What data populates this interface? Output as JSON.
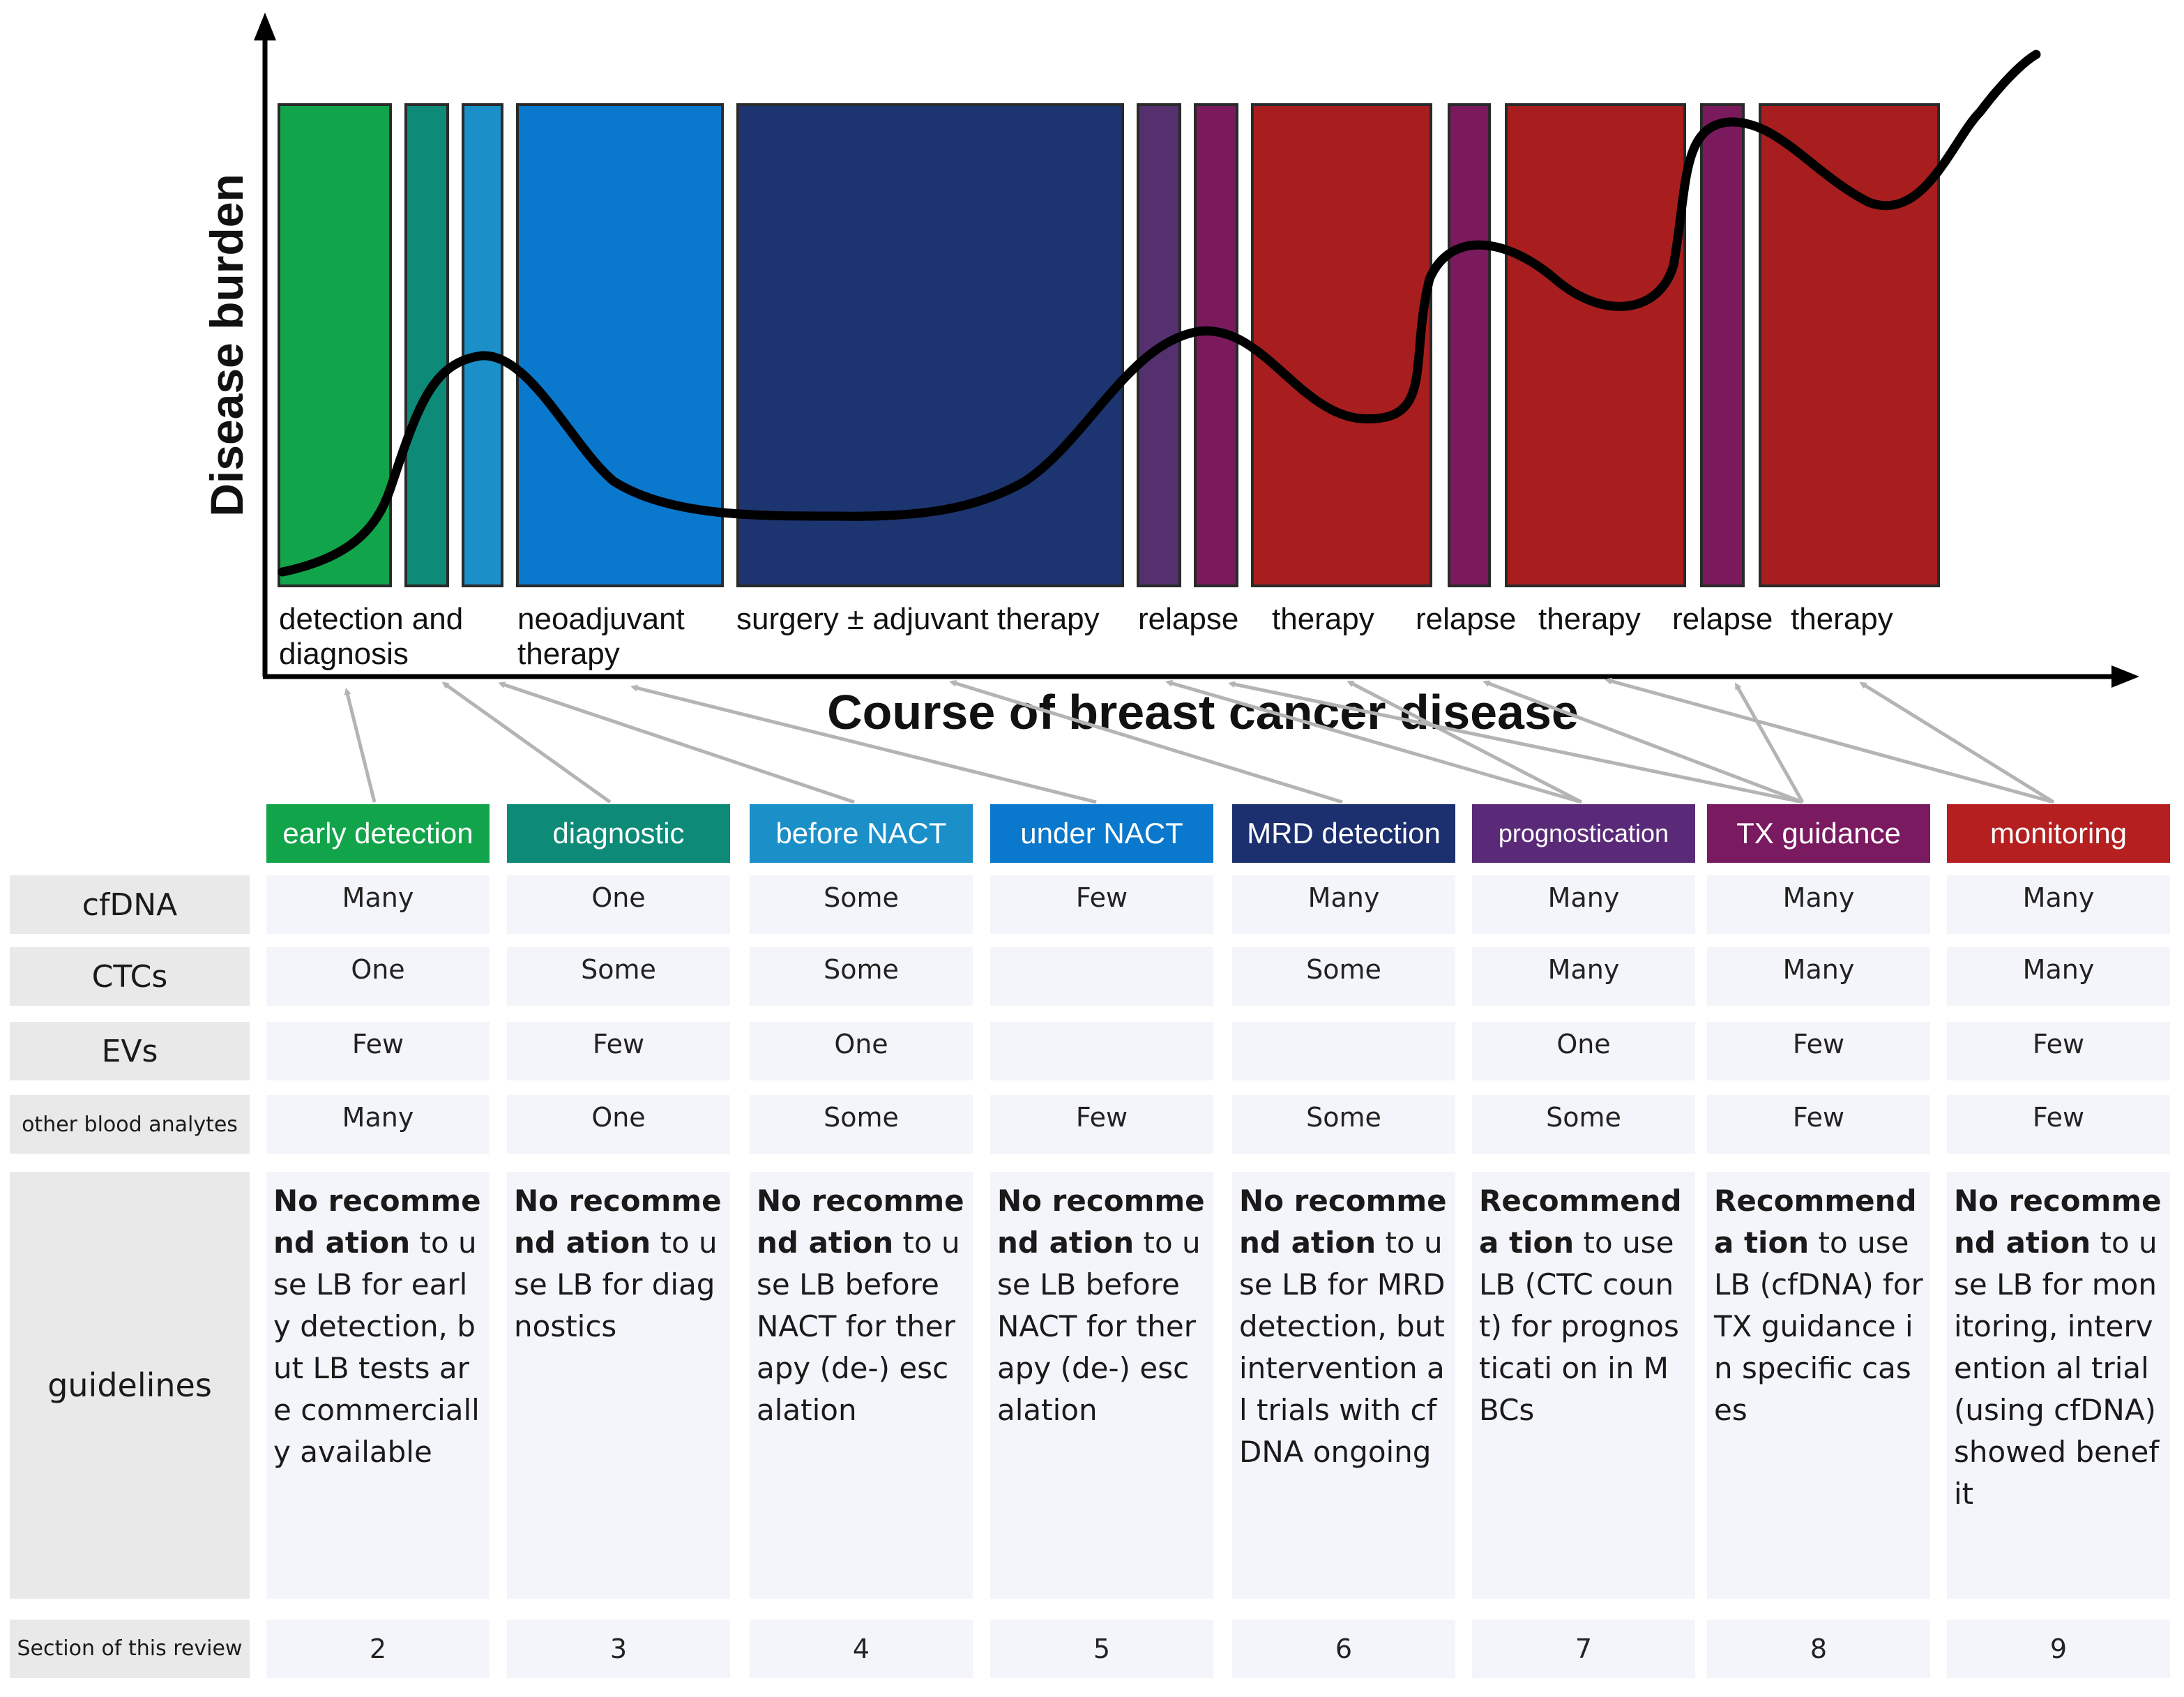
{
  "y_axis_label": "Disease burden",
  "x_axis_label": "Course of breast cancer disease",
  "phase_labels": [
    "detection and\ndiagnosis",
    "neoadjuvant\ntherapy",
    "surgery ± adjuvant therapy",
    "relapse",
    "therapy",
    "relapse",
    "therapy",
    "relapse",
    "therapy"
  ],
  "columns": [
    {
      "header": "early detection",
      "color": "#12a44a",
      "cfDNA": "Many",
      "CTCs": "One",
      "EVs": "Few",
      "other": "Many",
      "guide_bold": "No recommend ation",
      "guide_rest": " to use LB for early detection, but LB tests are commerciall y available",
      "section": "2"
    },
    {
      "header": "diagnostic",
      "color": "#0e8a78",
      "cfDNA": "One",
      "CTCs": "Some",
      "EVs": "Few",
      "other": "One",
      "guide_bold": "No recommend ation",
      "guide_rest": " to use LB for diagnostics",
      "section": "3"
    },
    {
      "header": "before NACT",
      "color": "#1a8fc8",
      "cfDNA": "Some",
      "CTCs": "Some",
      "EVs": "One",
      "other": "Some",
      "guide_bold": "No recommend ation",
      "guide_rest": " to use LB before NACT for therapy (de-) escalation",
      "section": "4"
    },
    {
      "header": "under NACT",
      "color": "#0a78cc",
      "cfDNA": "Few",
      "CTCs": "",
      "EVs": "",
      "other": "Few",
      "guide_bold": "No recommend ation",
      "guide_rest": " to use LB before NACT for therapy (de-) escalation",
      "section": "5"
    },
    {
      "header": "MRD detection",
      "color": "#1c2f6e",
      "cfDNA": "Many",
      "CTCs": "Some",
      "EVs": "",
      "other": "Some",
      "guide_bold": "No recommend ation",
      "guide_rest": " to use LB for MRD detection, but intervention al trials with cfDNA ongoing",
      "section": "6"
    },
    {
      "header": "prognostication",
      "color": "#5a2a78",
      "cfDNA": "Many",
      "CTCs": "Many",
      "EVs": "One",
      "other": "Some",
      "guide_bold": "Recommenda tion",
      "guide_rest": " to use LB (CTC count) for prognosticati on in MBCs",
      "section": "7"
    },
    {
      "header": "TX guidance",
      "color": "#7a1a60",
      "cfDNA": "Many",
      "CTCs": "Many",
      "EVs": "Few",
      "other": "Few",
      "guide_bold": "Recommenda tion",
      "guide_rest": " to use LB (cfDNA) for TX guidance in specific cases",
      "section": "8"
    },
    {
      "header": "monitoring",
      "color": "#b51f1f",
      "cfDNA": "Many",
      "CTCs": "Many",
      "EVs": "Few",
      "other": "Few",
      "guide_bold": "No recommend ation",
      "guide_rest": " to use LB for monitoring, intervention al trial (using cfDNA) showed benefit",
      "section": "9"
    }
  ],
  "row_labels": {
    "cfDNA": "cfDNA",
    "CTCs": "CTCs",
    "EVs": "EVs",
    "other": "other blood analytes",
    "guidelines": "guidelines",
    "section": "Section of this review"
  }
}
